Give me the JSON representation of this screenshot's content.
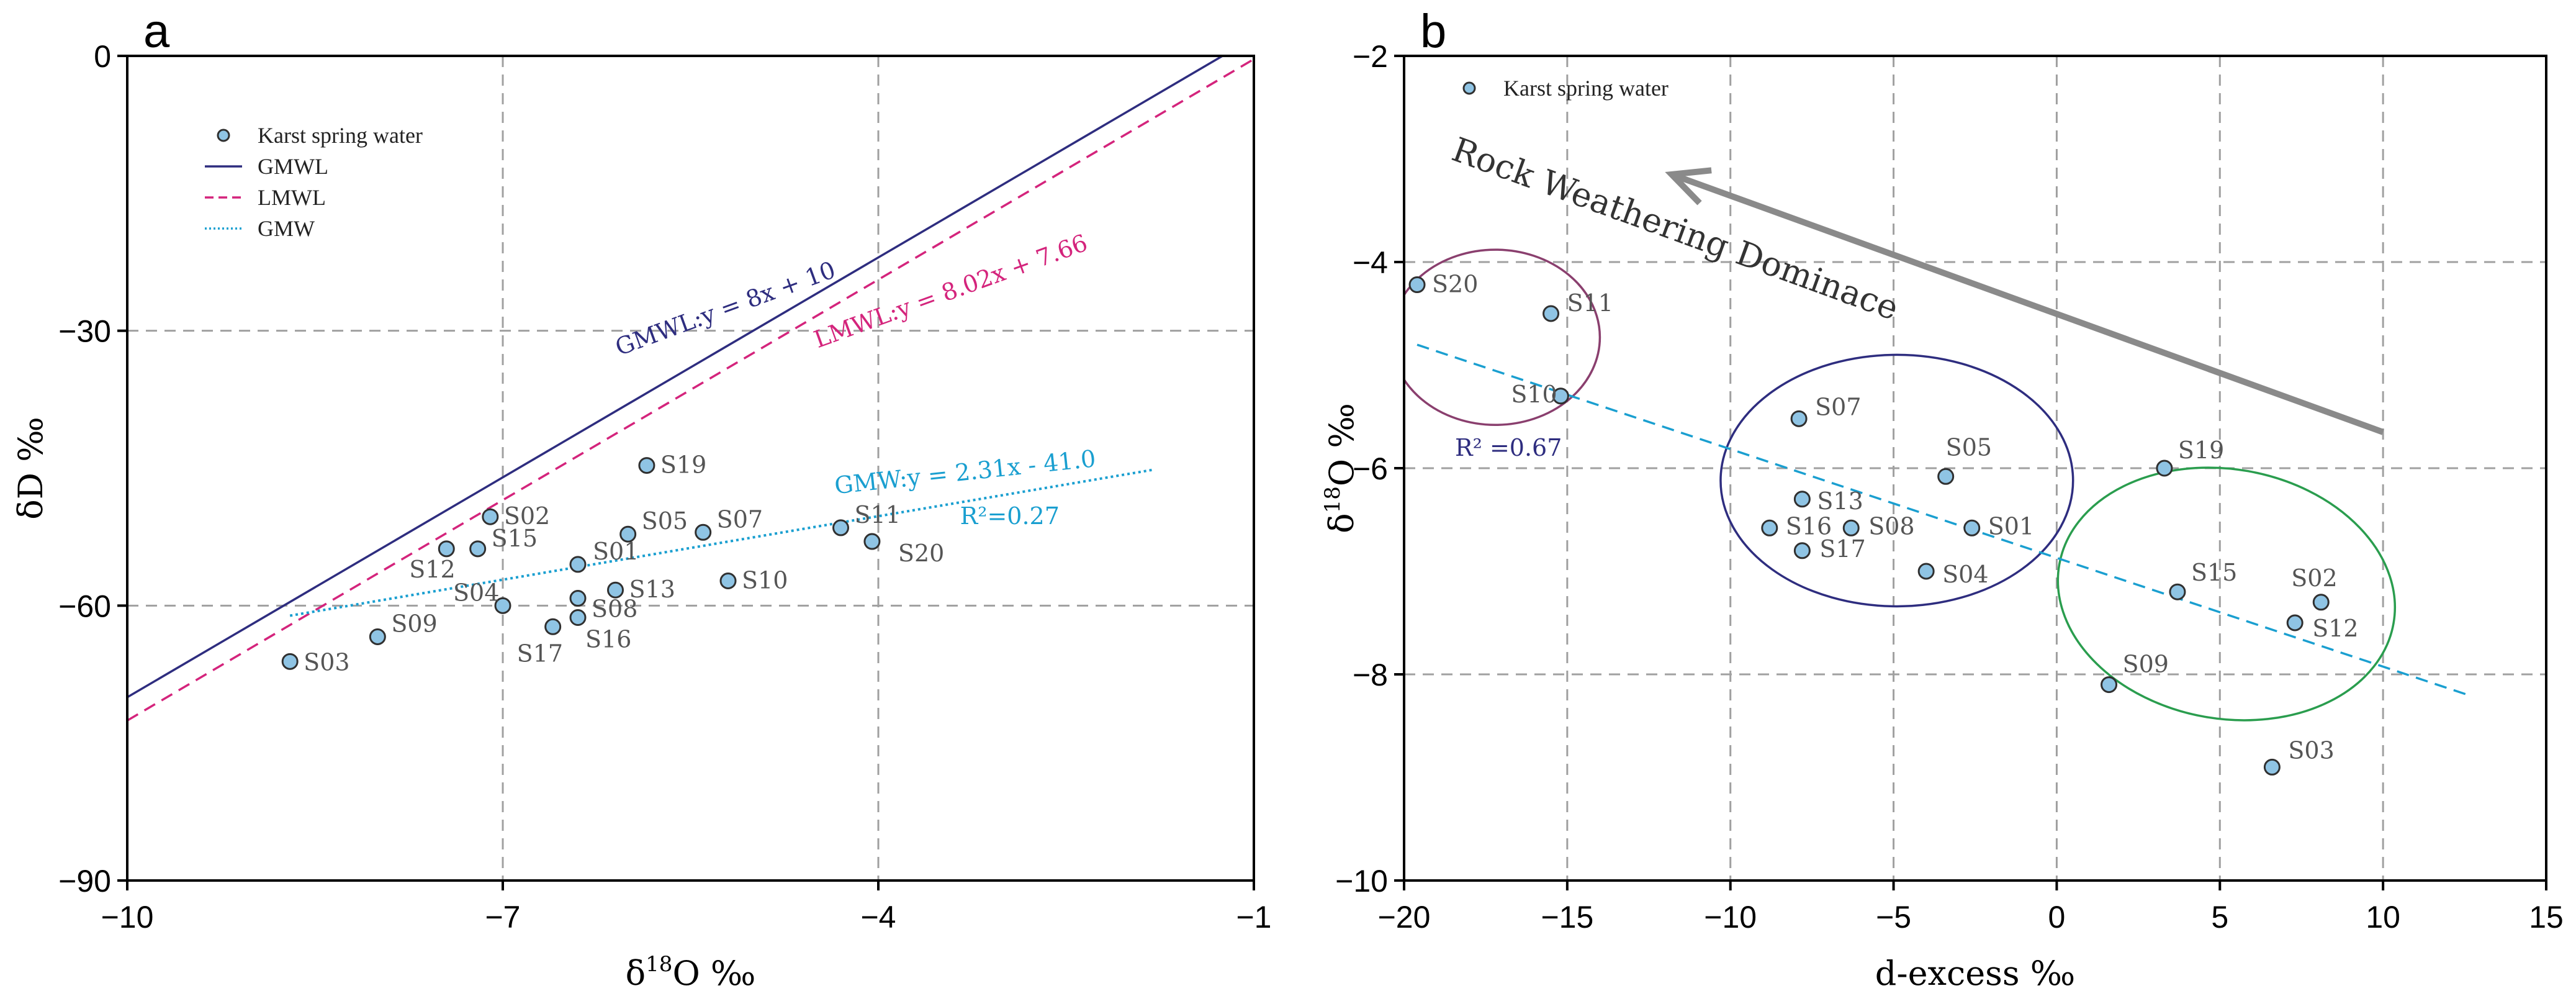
{
  "colors": {
    "point_fill": "#8fc4e4",
    "point_stroke": "#303030",
    "gmwl": "#2e2d7f",
    "lmwl": "#d4247c",
    "gmw": "#1a9fd0",
    "grid": "#a0a0a0",
    "ellipse_purple": "#8a3f6e",
    "ellipse_blue": "#2e2d7f",
    "ellipse_green": "#2a9d4e",
    "arrow": "#8a8a8a",
    "r2_b": "#2e2d7f"
  },
  "chart_data": [
    {
      "panel": "a",
      "type": "scatter",
      "xlabel_main": "δ",
      "xlabel_sup": "18",
      "xlabel_rest": "O ‰",
      "ylabel": "δD ‰",
      "xlim": [
        -10,
        -1
      ],
      "ylim": [
        -90,
        0
      ],
      "xticks": [
        -10,
        -7,
        -4,
        -1
      ],
      "yticks": [
        0,
        -30,
        -60,
        -90
      ],
      "xtick_labels": [
        "−10",
        "−7",
        "−4",
        "−1"
      ],
      "ytick_labels": [
        "0",
        "−30",
        "−60",
        "−90"
      ],
      "grid": true,
      "legend": {
        "position": "top-left",
        "entries": [
          {
            "label": "Karst spring water",
            "kind": "point"
          },
          {
            "label": "GMWL",
            "kind": "solid"
          },
          {
            "label": "LMWL",
            "kind": "dashed"
          },
          {
            "label": "GMW",
            "kind": "dotted"
          }
        ]
      },
      "lines": [
        {
          "name": "GMWL",
          "slope": 8,
          "intercept": 10,
          "x_range": [
            -10,
            -1.25
          ],
          "style": "solid",
          "color_key": "gmwl",
          "annotation": "GMWL:y = 8x + 10",
          "ann_x": -5.2,
          "ann_y": -28.4,
          "ann_rotate": -20
        },
        {
          "name": "LMWL",
          "slope": 8.02,
          "intercept": 7.66,
          "x_range": [
            -10,
            -0.95
          ],
          "style": "dashed",
          "color_key": "lmwl",
          "annotation": "LMWL:y = 8.02x + 7.66",
          "ann_x": -3.4,
          "ann_y": -26.5,
          "ann_rotate": -20
        },
        {
          "name": "GMW",
          "slope": 2.31,
          "intercept": -41.0,
          "x_range": [
            -8.7,
            -1.8
          ],
          "style": "dotted",
          "color_key": "gmw",
          "annotation": "GMW:y = 2.31x - 41.0",
          "ann_x": -3.3,
          "ann_y": -46.3,
          "ann_rotate": -6,
          "r2": "R²=0.27",
          "r2_x": -2.95,
          "r2_y": -51.1
        }
      ],
      "points": [
        {
          "label": "S01",
          "x": -6.4,
          "y": -55.5,
          "dx": 12,
          "dy": -8
        },
        {
          "label": "S02",
          "x": -7.1,
          "y": -50.3,
          "dx": 10,
          "dy": 12
        },
        {
          "label": "S03",
          "x": -8.7,
          "y": -66.1,
          "dx": 10,
          "dy": 14
        },
        {
          "label": "S04",
          "x": -7.0,
          "y": -60.0,
          "dx": -92,
          "dy": -8
        },
        {
          "label": "S05",
          "x": -6.0,
          "y": -52.2,
          "dx": 10,
          "dy": -8
        },
        {
          "label": "S07",
          "x": -5.4,
          "y": -52.0,
          "dx": 10,
          "dy": -8
        },
        {
          "label": "S08",
          "x": -6.4,
          "y": -59.2,
          "dx": 10,
          "dy": 30
        },
        {
          "label": "S09",
          "x": -8.0,
          "y": -63.4,
          "dx": 10,
          "dy": -8
        },
        {
          "label": "S10",
          "x": -5.2,
          "y": -57.3,
          "dx": 10,
          "dy": 12
        },
        {
          "label": "S11",
          "x": -4.3,
          "y": -51.5,
          "dx": 10,
          "dy": -8
        },
        {
          "label": "S12",
          "x": -7.45,
          "y": -53.8,
          "dx": -72,
          "dy": 46
        },
        {
          "label": "S13",
          "x": -6.1,
          "y": -58.3,
          "dx": 10,
          "dy": 12
        },
        {
          "label": "S15",
          "x": -7.2,
          "y": -53.8,
          "dx": 10,
          "dy": -4
        },
        {
          "label": "S16",
          "x": -6.4,
          "y": -61.3,
          "dx": 0,
          "dy": 48
        },
        {
          "label": "S17",
          "x": -6.6,
          "y": -62.3,
          "dx": -70,
          "dy": 56
        },
        {
          "label": "S19",
          "x": -5.85,
          "y": -44.7,
          "dx": 10,
          "dy": 12
        },
        {
          "label": "S20",
          "x": -4.05,
          "y": -53.0,
          "dx": 30,
          "dy": 32
        }
      ]
    },
    {
      "panel": "b",
      "type": "scatter",
      "xlabel": "d-excess ‰",
      "ylabel_main": "δ",
      "ylabel_sup": "18",
      "ylabel_rest": "O ‰",
      "xlim": [
        -20,
        15
      ],
      "ylim": [
        -10,
        -2
      ],
      "xticks": [
        -20,
        -15,
        -10,
        -5,
        0,
        5,
        10,
        15
      ],
      "yticks": [
        -2,
        -4,
        -6,
        -8,
        -10
      ],
      "xtick_labels": [
        "−20",
        "−15",
        "−10",
        "−5",
        "0",
        "5",
        "10",
        "15"
      ],
      "ytick_labels": [
        "−2",
        "−4",
        "−6",
        "−8",
        "−10"
      ],
      "grid": true,
      "legend": {
        "position": "top-left",
        "entries": [
          {
            "label": "Karst spring water",
            "kind": "point"
          }
        ]
      },
      "lines": [
        {
          "name": "fit",
          "slope": -0.1055,
          "intercept": -6.87,
          "x_range": [
            -19.6,
            12.6
          ],
          "style": "dashed",
          "color_key": "gmw",
          "r2": "R² =0.67",
          "r2_x": -16.8,
          "r2_y": -5.88
        }
      ],
      "arrow": {
        "from": [
          10,
          -5.65
        ],
        "to": [
          -11.8,
          -3.15
        ],
        "label": "Rock Weathering Dominace",
        "label_x": -18.6,
        "label_y": -3.0,
        "label_rotate": 20
      },
      "ellipses": [
        {
          "cx": -17.2,
          "cy": -4.73,
          "rx": 3.2,
          "ry": 0.85,
          "color_key": "ellipse_purple"
        },
        {
          "cx": -4.9,
          "cy": -6.12,
          "rx": 5.4,
          "ry": 1.22,
          "color_key": "ellipse_blue"
        },
        {
          "cx": 5.2,
          "cy": -7.22,
          "rx": 5.2,
          "ry": 1.21,
          "rotate": 10,
          "color_key": "ellipse_green"
        }
      ],
      "points": [
        {
          "label": "S20",
          "x": -19.6,
          "y": -4.22,
          "dx": 12,
          "dy": 12
        },
        {
          "label": "S11",
          "x": -15.5,
          "y": -4.5,
          "dx": 14,
          "dy": -4
        },
        {
          "label": "S10",
          "x": -15.2,
          "y": -5.3,
          "dx": -92,
          "dy": 10
        },
        {
          "label": "S07",
          "x": -7.9,
          "y": -5.52,
          "dx": 14,
          "dy": -6
        },
        {
          "label": "S05",
          "x": -3.4,
          "y": -6.08,
          "dx": -12,
          "dy": -34
        },
        {
          "label": "S13",
          "x": -7.8,
          "y": -6.3,
          "dx": 12,
          "dy": 16
        },
        {
          "label": "S16",
          "x": -8.8,
          "y": -6.58,
          "dx": 14,
          "dy": 10
        },
        {
          "label": "S08",
          "x": -6.3,
          "y": -6.58,
          "dx": 16,
          "dy": 10
        },
        {
          "label": "S01",
          "x": -2.6,
          "y": -6.58,
          "dx": 14,
          "dy": 10
        },
        {
          "label": "S17",
          "x": -7.8,
          "y": -6.8,
          "dx": 16,
          "dy": 10
        },
        {
          "label": "S04",
          "x": -4.0,
          "y": -7.0,
          "dx": 14,
          "dy": 18
        },
        {
          "label": "S19",
          "x": 3.3,
          "y": -6.0,
          "dx": 10,
          "dy": -16
        },
        {
          "label": "S15",
          "x": 3.7,
          "y": -7.2,
          "dx": 10,
          "dy": -18
        },
        {
          "label": "S02",
          "x": 8.1,
          "y": -7.3,
          "dx": -60,
          "dy": -26
        },
        {
          "label": "S12",
          "x": 7.3,
          "y": -7.5,
          "dx": 16,
          "dy": 22
        },
        {
          "label": "S09",
          "x": 1.6,
          "y": -8.1,
          "dx": 10,
          "dy": -20
        },
        {
          "label": "S03",
          "x": 6.6,
          "y": -8.9,
          "dx": 14,
          "dy": -14
        }
      ]
    }
  ]
}
